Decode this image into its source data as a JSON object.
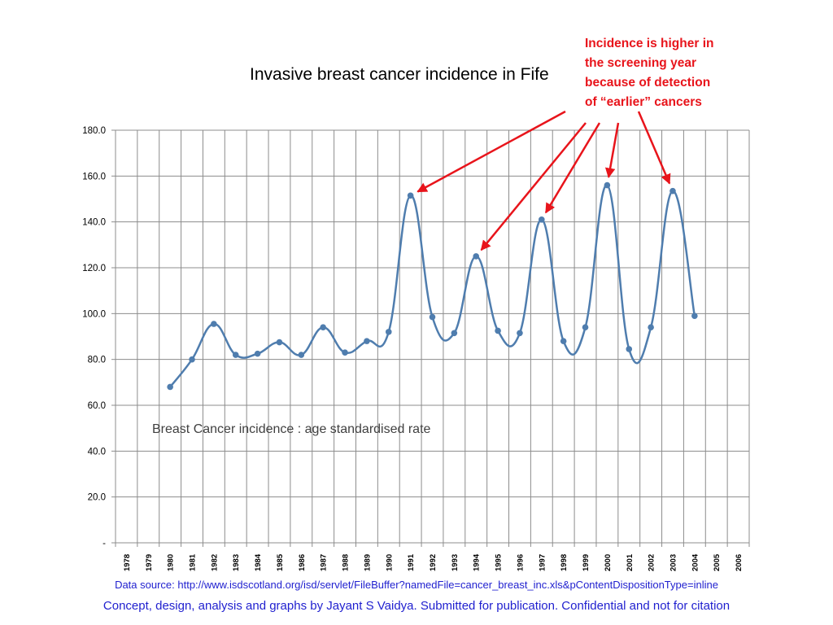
{
  "chart_data": {
    "type": "line",
    "title": "Invasive breast cancer incidence in Fife",
    "series_label": "Breast Cancer incidence : age standardised rate",
    "x_categories": [
      "1978",
      "1979",
      "1980",
      "1981",
      "1982",
      "1983",
      "1984",
      "1985",
      "1986",
      "1987",
      "1988",
      "1989",
      "1990",
      "1991",
      "1992",
      "1993",
      "1994",
      "1995",
      "1996",
      "1997",
      "1998",
      "1999",
      "2000",
      "2001",
      "2002",
      "2003",
      "2004",
      "2005",
      "2006"
    ],
    "series": [
      {
        "x": [
          "1980",
          "1981",
          "1982",
          "1983",
          "1984",
          "1985",
          "1986",
          "1987",
          "1988",
          "1989",
          "1990",
          "1991",
          "1992",
          "1993",
          "1994",
          "1995",
          "1996",
          "1997",
          "1998",
          "1999",
          "2000",
          "2001",
          "2002",
          "2003",
          "2004"
        ],
        "values": [
          68.0,
          80.0,
          95.5,
          82.0,
          82.5,
          87.5,
          82.0,
          94.0,
          83.0,
          88.0,
          92.0,
          151.5,
          98.5,
          91.5,
          125.0,
          92.5,
          91.5,
          141.0,
          88.0,
          94.0,
          156.0,
          84.5,
          94.0,
          153.5,
          99.0
        ]
      }
    ],
    "y_ticks": [
      {
        "value": 0,
        "label": "-"
      },
      {
        "value": 20,
        "label": "20.0"
      },
      {
        "value": 40,
        "label": "40.0"
      },
      {
        "value": 60,
        "label": "60.0"
      },
      {
        "value": 80,
        "label": "80.0"
      },
      {
        "value": 100,
        "label": "100.0"
      },
      {
        "value": 120,
        "label": "120.0"
      },
      {
        "value": 140,
        "label": "140.0"
      },
      {
        "value": 160,
        "label": "160.0"
      },
      {
        "value": 180,
        "label": "180.0"
      }
    ],
    "ylim": [
      0,
      180
    ],
    "grid": true,
    "line_color": "#4f7dae",
    "annotation": {
      "lines": [
        "Incidence is higher in",
        "the screening year",
        "because of detection",
        "of “earlier” cancers"
      ],
      "color": "#e8141b",
      "targets": [
        "1991",
        "1994",
        "1997",
        "2000",
        "2003"
      ]
    }
  },
  "footer": {
    "source": "Data source: http://www.isdscotland.org/isd/servlet/FileBuffer?namedFile=cancer_breast_inc.xls&pContentDispositionType=inline",
    "credit": "Concept, design, analysis and graphs by Jayant S Vaidya.  Submitted for publication. Confidential and not for citation",
    "color": "#1f1fcf"
  }
}
